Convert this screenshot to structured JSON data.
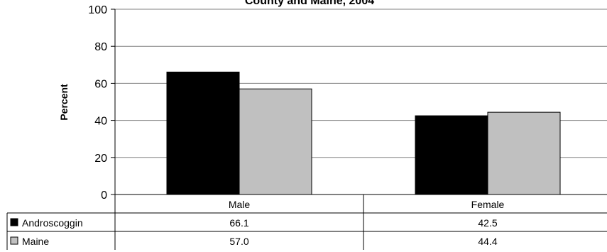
{
  "chart_data": {
    "type": "bar",
    "title": "County and Maine, 2004",
    "ylabel": "Percent",
    "xlabel": "",
    "ylim": [
      0,
      100
    ],
    "yticks": [
      0,
      20,
      40,
      60,
      80,
      100
    ],
    "grid": true,
    "categories": [
      "Male",
      "Female"
    ],
    "series": [
      {
        "name": "Androscoggin",
        "color": "#000000",
        "values": [
          66.1,
          42.5
        ],
        "labels": [
          "66.1",
          "42.5"
        ]
      },
      {
        "name": "Maine",
        "color": "#c0c0c0",
        "values": [
          57.0,
          44.4
        ],
        "labels": [
          "57.0",
          "44.4"
        ]
      }
    ],
    "legend": "data-table"
  }
}
